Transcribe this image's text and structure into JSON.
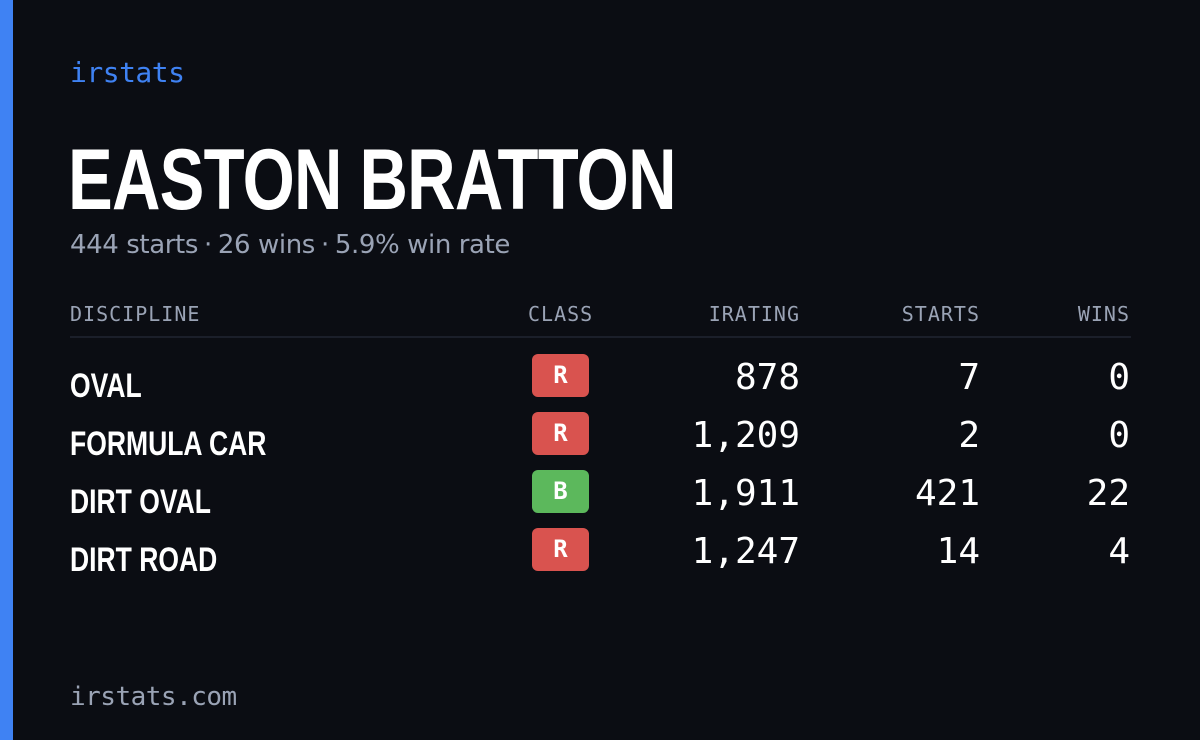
{
  "brand": "irstats",
  "driver_name": "EASTON BRATTON",
  "summary": {
    "starts": "444 starts",
    "wins": "26 wins",
    "win_rate": "5.9% win rate",
    "separator": "·"
  },
  "table": {
    "headers": {
      "discipline": "DISCIPLINE",
      "class": "CLASS",
      "irating": "IRATING",
      "starts": "STARTS",
      "wins": "WINS"
    },
    "rows": [
      {
        "discipline": "OVAL",
        "class": "R",
        "class_color": "#d9534f",
        "irating": "878",
        "starts": "7",
        "wins": "0"
      },
      {
        "discipline": "FORMULA CAR",
        "class": "R",
        "class_color": "#d9534f",
        "irating": "1,209",
        "starts": "2",
        "wins": "0"
      },
      {
        "discipline": "DIRT OVAL",
        "class": "B",
        "class_color": "#5cb85c",
        "irating": "1,911",
        "starts": "421",
        "wins": "22"
      },
      {
        "discipline": "DIRT ROAD",
        "class": "R",
        "class_color": "#d9534f",
        "irating": "1,247",
        "starts": "14",
        "wins": "4"
      }
    ]
  },
  "footer": "irstats.com",
  "colors": {
    "background": "#0b0d13",
    "accent": "#3f82f3",
    "muted": "#9aa3b5"
  }
}
